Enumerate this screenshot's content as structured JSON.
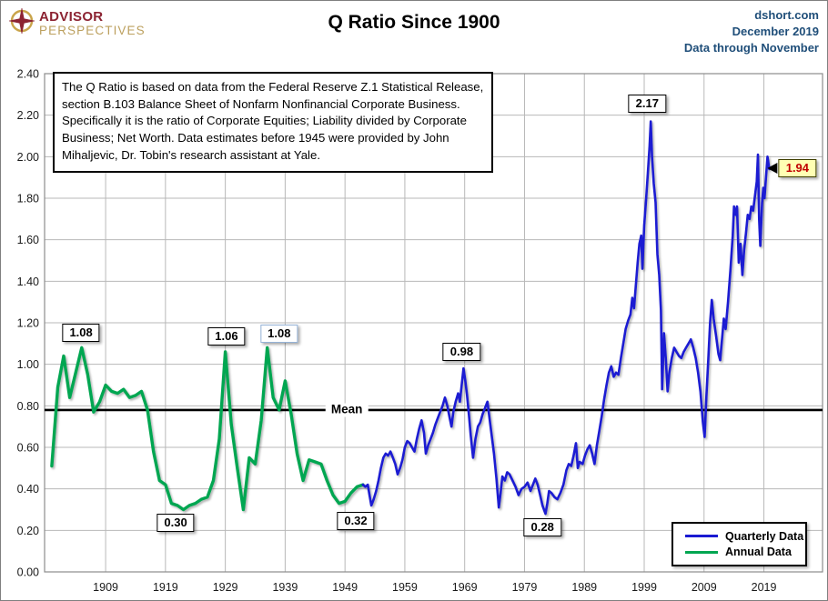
{
  "header": {
    "logo": {
      "line1": "ADVISOR",
      "line2": "PERSPECTIVES"
    },
    "title": "Q Ratio Since 1900",
    "source": {
      "line1": "dshort.com",
      "line2": "December 2019",
      "line3": "Data through November"
    }
  },
  "textbox": {
    "lines": [
      "The Q Ratio is based on data from the Federal Reserve Z.1 Statistical Release,",
      "section B.103 Balance Sheet of Nonfarm Nonfinancial Corporate Business.",
      "Specifically it is the ratio  of Corporate Equities; Liability divided by Corporate",
      "Business; Net Worth.  Data estimates before 1945 were provided by John",
      "Mihaljevic, Dr. Tobin's research assistant at Yale."
    ]
  },
  "legend": {
    "items": [
      {
        "label": "Quarterly Data",
        "color": "#1a1ad2"
      },
      {
        "label": "Annual Data",
        "color": "#00a651"
      }
    ]
  },
  "colors": {
    "quarterly": "#1a1ad2",
    "annual": "#00a651",
    "mean_line": "#000000",
    "grid": "#b8b8b8",
    "axis": "#8c8c8c",
    "source_text": "#1f4e79",
    "callout_bg": "#ffffb3",
    "callout_text": "#c00000"
  },
  "chart_data": {
    "type": "line",
    "title": "Q Ratio Since 1900",
    "xlabel": "",
    "ylabel": "",
    "grid": true,
    "legend_position": "lower right",
    "x_axis": {
      "range": [
        1898.8,
        2028.8
      ],
      "ticks": [
        1909,
        1919,
        1929,
        1939,
        1949,
        1959,
        1969,
        1979,
        1989,
        1999,
        2009,
        2019
      ]
    },
    "y_axis": {
      "range": [
        0.0,
        2.4
      ],
      "tick_step": 0.2,
      "tick_labels": [
        "0.00",
        "0.20",
        "0.40",
        "0.60",
        "0.80",
        "1.00",
        "1.20",
        "1.40",
        "1.60",
        "1.80",
        "2.00",
        "2.20",
        "2.40"
      ]
    },
    "mean_line": {
      "label": "Mean",
      "value": 0.78,
      "label_x": 1949.3
    },
    "series": [
      {
        "name": "Annual Data",
        "color": "#00a651",
        "width": 3.4,
        "points": [
          [
            1900,
            0.51
          ],
          [
            1901,
            0.89
          ],
          [
            1902,
            1.04
          ],
          [
            1903,
            0.84
          ],
          [
            1904,
            0.96
          ],
          [
            1905,
            1.08
          ],
          [
            1906,
            0.95
          ],
          [
            1907,
            0.77
          ],
          [
            1908,
            0.82
          ],
          [
            1909,
            0.9
          ],
          [
            1910,
            0.87
          ],
          [
            1911,
            0.86
          ],
          [
            1912,
            0.88
          ],
          [
            1913,
            0.84
          ],
          [
            1914,
            0.85
          ],
          [
            1915,
            0.87
          ],
          [
            1916,
            0.78
          ],
          [
            1917,
            0.58
          ],
          [
            1918,
            0.44
          ],
          [
            1919,
            0.42
          ],
          [
            1920,
            0.33
          ],
          [
            1921,
            0.32
          ],
          [
            1922,
            0.3
          ],
          [
            1923,
            0.32
          ],
          [
            1924,
            0.33
          ],
          [
            1925,
            0.35
          ],
          [
            1926,
            0.36
          ],
          [
            1927,
            0.44
          ],
          [
            1928,
            0.64
          ],
          [
            1929,
            1.06
          ],
          [
            1930,
            0.71
          ],
          [
            1931,
            0.5
          ],
          [
            1932,
            0.3
          ],
          [
            1933,
            0.55
          ],
          [
            1934,
            0.52
          ],
          [
            1935,
            0.73
          ],
          [
            1936,
            1.08
          ],
          [
            1937,
            0.84
          ],
          [
            1938,
            0.78
          ],
          [
            1939,
            0.92
          ],
          [
            1940,
            0.76
          ],
          [
            1941,
            0.57
          ],
          [
            1942,
            0.44
          ],
          [
            1943,
            0.54
          ],
          [
            1944,
            0.53
          ],
          [
            1945,
            0.52
          ],
          [
            1946,
            0.44
          ],
          [
            1947,
            0.37
          ],
          [
            1948,
            0.33
          ],
          [
            1949,
            0.34
          ],
          [
            1950,
            0.38
          ],
          [
            1951,
            0.41
          ],
          [
            1952,
            0.42
          ]
        ]
      },
      {
        "name": "Quarterly Data",
        "color": "#1a1ad2",
        "width": 2.6,
        "points": [
          [
            1952.0,
            0.42
          ],
          [
            1952.4,
            0.41
          ],
          [
            1952.8,
            0.42
          ],
          [
            1953.1,
            0.37
          ],
          [
            1953.4,
            0.32
          ],
          [
            1953.8,
            0.35
          ],
          [
            1954.2,
            0.39
          ],
          [
            1954.6,
            0.44
          ],
          [
            1955.0,
            0.5
          ],
          [
            1955.4,
            0.55
          ],
          [
            1955.8,
            0.57
          ],
          [
            1956.2,
            0.56
          ],
          [
            1956.6,
            0.58
          ],
          [
            1957.0,
            0.55
          ],
          [
            1957.4,
            0.52
          ],
          [
            1957.8,
            0.47
          ],
          [
            1958.2,
            0.5
          ],
          [
            1958.6,
            0.54
          ],
          [
            1959.0,
            0.6
          ],
          [
            1959.4,
            0.63
          ],
          [
            1959.8,
            0.62
          ],
          [
            1960.2,
            0.6
          ],
          [
            1960.6,
            0.58
          ],
          [
            1961.0,
            0.64
          ],
          [
            1961.4,
            0.69
          ],
          [
            1961.8,
            0.73
          ],
          [
            1962.2,
            0.67
          ],
          [
            1962.5,
            0.57
          ],
          [
            1962.9,
            0.61
          ],
          [
            1963.3,
            0.64
          ],
          [
            1963.7,
            0.67
          ],
          [
            1964.1,
            0.71
          ],
          [
            1964.5,
            0.74
          ],
          [
            1964.9,
            0.77
          ],
          [
            1965.3,
            0.8
          ],
          [
            1965.7,
            0.84
          ],
          [
            1966.1,
            0.8
          ],
          [
            1966.5,
            0.74
          ],
          [
            1966.8,
            0.7
          ],
          [
            1967.1,
            0.77
          ],
          [
            1967.5,
            0.82
          ],
          [
            1967.9,
            0.86
          ],
          [
            1968.2,
            0.82
          ],
          [
            1968.5,
            0.9
          ],
          [
            1968.8,
            0.98
          ],
          [
            1969.1,
            0.92
          ],
          [
            1969.4,
            0.85
          ],
          [
            1969.7,
            0.76
          ],
          [
            1970.0,
            0.66
          ],
          [
            1970.4,
            0.55
          ],
          [
            1970.8,
            0.64
          ],
          [
            1971.2,
            0.7
          ],
          [
            1971.6,
            0.72
          ],
          [
            1972.0,
            0.76
          ],
          [
            1972.4,
            0.79
          ],
          [
            1972.8,
            0.82
          ],
          [
            1973.1,
            0.75
          ],
          [
            1973.5,
            0.66
          ],
          [
            1973.9,
            0.57
          ],
          [
            1974.3,
            0.45
          ],
          [
            1974.7,
            0.31
          ],
          [
            1975.0,
            0.38
          ],
          [
            1975.3,
            0.46
          ],
          [
            1975.7,
            0.44
          ],
          [
            1976.1,
            0.48
          ],
          [
            1976.5,
            0.47
          ],
          [
            1977.0,
            0.44
          ],
          [
            1977.5,
            0.41
          ],
          [
            1978.0,
            0.37
          ],
          [
            1978.5,
            0.4
          ],
          [
            1979.0,
            0.41
          ],
          [
            1979.5,
            0.43
          ],
          [
            1980.0,
            0.39
          ],
          [
            1980.4,
            0.42
          ],
          [
            1980.8,
            0.45
          ],
          [
            1981.2,
            0.42
          ],
          [
            1981.6,
            0.37
          ],
          [
            1982.0,
            0.32
          ],
          [
            1982.5,
            0.28
          ],
          [
            1982.8,
            0.33
          ],
          [
            1983.1,
            0.39
          ],
          [
            1983.5,
            0.38
          ],
          [
            1984.0,
            0.36
          ],
          [
            1984.5,
            0.35
          ],
          [
            1985.0,
            0.38
          ],
          [
            1985.5,
            0.42
          ],
          [
            1986.0,
            0.49
          ],
          [
            1986.4,
            0.52
          ],
          [
            1986.8,
            0.51
          ],
          [
            1987.2,
            0.56
          ],
          [
            1987.6,
            0.62
          ],
          [
            1987.9,
            0.5
          ],
          [
            1988.2,
            0.53
          ],
          [
            1988.7,
            0.52
          ],
          [
            1989.1,
            0.56
          ],
          [
            1989.5,
            0.59
          ],
          [
            1989.9,
            0.61
          ],
          [
            1990.3,
            0.57
          ],
          [
            1990.7,
            0.52
          ],
          [
            1991.1,
            0.61
          ],
          [
            1991.5,
            0.68
          ],
          [
            1991.9,
            0.75
          ],
          [
            1992.3,
            0.83
          ],
          [
            1992.7,
            0.9
          ],
          [
            1993.1,
            0.96
          ],
          [
            1993.5,
            0.99
          ],
          [
            1993.9,
            0.94
          ],
          [
            1994.3,
            0.96
          ],
          [
            1994.7,
            0.95
          ],
          [
            1995.1,
            1.03
          ],
          [
            1995.5,
            1.1
          ],
          [
            1995.9,
            1.17
          ],
          [
            1996.3,
            1.21
          ],
          [
            1996.7,
            1.24
          ],
          [
            1997.0,
            1.32
          ],
          [
            1997.3,
            1.27
          ],
          [
            1997.6,
            1.38
          ],
          [
            1997.9,
            1.49
          ],
          [
            1998.2,
            1.58
          ],
          [
            1998.5,
            1.62
          ],
          [
            1998.7,
            1.46
          ],
          [
            1999.0,
            1.67
          ],
          [
            1999.3,
            1.79
          ],
          [
            1999.6,
            1.92
          ],
          [
            1999.9,
            2.05
          ],
          [
            2000.1,
            2.17
          ],
          [
            2000.3,
            2.0
          ],
          [
            2000.6,
            1.87
          ],
          [
            2000.9,
            1.78
          ],
          [
            2001.2,
            1.53
          ],
          [
            2001.5,
            1.43
          ],
          [
            2001.8,
            1.26
          ],
          [
            2002.0,
            0.88
          ],
          [
            2002.3,
            1.15
          ],
          [
            2002.6,
            1.03
          ],
          [
            2002.9,
            0.87
          ],
          [
            2003.2,
            0.96
          ],
          [
            2003.6,
            1.03
          ],
          [
            2004.0,
            1.08
          ],
          [
            2004.4,
            1.06
          ],
          [
            2004.8,
            1.04
          ],
          [
            2005.2,
            1.03
          ],
          [
            2005.6,
            1.06
          ],
          [
            2006.0,
            1.08
          ],
          [
            2006.4,
            1.1
          ],
          [
            2006.8,
            1.12
          ],
          [
            2007.2,
            1.08
          ],
          [
            2007.6,
            1.03
          ],
          [
            2008.0,
            0.96
          ],
          [
            2008.4,
            0.87
          ],
          [
            2008.8,
            0.72
          ],
          [
            2009.1,
            0.65
          ],
          [
            2009.4,
            0.85
          ],
          [
            2009.7,
            1.02
          ],
          [
            2010.0,
            1.2
          ],
          [
            2010.3,
            1.31
          ],
          [
            2010.6,
            1.22
          ],
          [
            2011.0,
            1.14
          ],
          [
            2011.4,
            1.05
          ],
          [
            2011.7,
            1.02
          ],
          [
            2012.0,
            1.12
          ],
          [
            2012.3,
            1.22
          ],
          [
            2012.6,
            1.17
          ],
          [
            2013.0,
            1.3
          ],
          [
            2013.4,
            1.45
          ],
          [
            2013.8,
            1.62
          ],
          [
            2014.0,
            1.76
          ],
          [
            2014.3,
            1.72
          ],
          [
            2014.5,
            1.76
          ],
          [
            2014.8,
            1.49
          ],
          [
            2015.1,
            1.58
          ],
          [
            2015.4,
            1.43
          ],
          [
            2015.7,
            1.55
          ],
          [
            2016.0,
            1.63
          ],
          [
            2016.3,
            1.72
          ],
          [
            2016.6,
            1.7
          ],
          [
            2016.9,
            1.76
          ],
          [
            2017.2,
            1.74
          ],
          [
            2017.5,
            1.81
          ],
          [
            2017.8,
            1.88
          ],
          [
            2018.0,
            2.01
          ],
          [
            2018.2,
            1.7
          ],
          [
            2018.4,
            1.57
          ],
          [
            2018.7,
            1.78
          ],
          [
            2018.9,
            1.85
          ],
          [
            2019.1,
            1.8
          ],
          [
            2019.3,
            1.88
          ],
          [
            2019.6,
            2.0
          ],
          [
            2019.9,
            1.94
          ]
        ]
      }
    ],
    "annotations": [
      {
        "label": "1.08",
        "x": 1904.9,
        "y": 1.15,
        "style": "box"
      },
      {
        "label": "0.30",
        "x": 1920.7,
        "y": 0.236,
        "style": "box"
      },
      {
        "label": "1.06",
        "x": 1929.2,
        "y": 1.134,
        "style": "box"
      },
      {
        "label": "1.08",
        "x": 1938.0,
        "y": 1.147,
        "style": "box-blue"
      },
      {
        "label": "0.32",
        "x": 1950.8,
        "y": 0.245,
        "style": "box"
      },
      {
        "label": "0.98",
        "x": 1968.5,
        "y": 1.06,
        "style": "box"
      },
      {
        "label": "0.28",
        "x": 1982.0,
        "y": 0.215,
        "style": "box"
      },
      {
        "label": "2.17",
        "x": 1999.5,
        "y": 2.256,
        "style": "box"
      },
      {
        "label": "1.94",
        "x": 2024.6,
        "y": 1.945,
        "style": "callout"
      }
    ]
  }
}
